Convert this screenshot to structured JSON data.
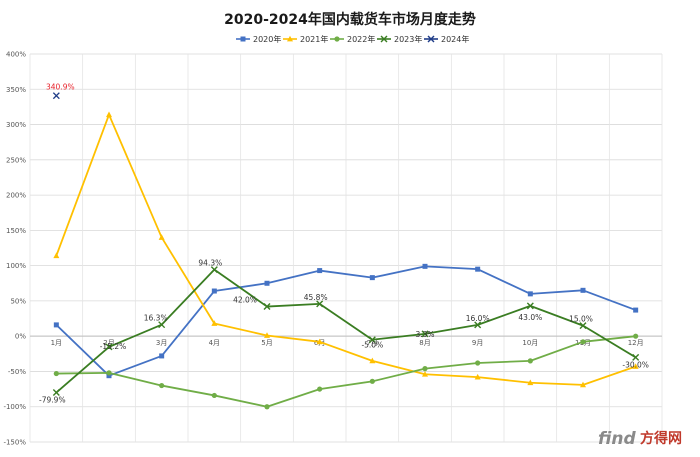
{
  "chart_data": {
    "type": "line",
    "title": "2020-2024年国内载货车市场月度走势",
    "categories": [
      "1月",
      "2月",
      "3月",
      "4月",
      "5月",
      "6月",
      "7月",
      "8月",
      "9月",
      "10月",
      "11月",
      "12月"
    ],
    "ylim": [
      -150,
      400
    ],
    "y_ticks": [
      400,
      350,
      300,
      250,
      200,
      150,
      100,
      50,
      0,
      -50,
      -100,
      -150
    ],
    "y_tick_labels": [
      "400%",
      "350%",
      "300%",
      "250%",
      "200%",
      "150%",
      "100%",
      "50%",
      "0%",
      "-50%",
      "-100%",
      "-150%"
    ],
    "grid": true,
    "legend_position": "top",
    "series": [
      {
        "name": "2020年",
        "color": "#4472c4",
        "marker": "square",
        "values": [
          16,
          -56,
          -28,
          64,
          75,
          93,
          83,
          99,
          95,
          60,
          65,
          37
        ]
      },
      {
        "name": "2021年",
        "color": "#ffc000",
        "marker": "triangle",
        "values": [
          114,
          314,
          140,
          18,
          1,
          -8,
          -35,
          -54,
          -58,
          -66,
          -69,
          -43
        ]
      },
      {
        "name": "2022年",
        "color": "#70ad47",
        "marker": "circle",
        "values": [
          -53,
          -52,
          -70,
          -84,
          -100,
          -75,
          -64,
          -46,
          -38,
          -35,
          -8,
          0
        ]
      },
      {
        "name": "2023年",
        "color": "#3a7d22",
        "marker": "x",
        "values": [
          -79.9,
          -15.2,
          16.3,
          94.3,
          42.0,
          45.8,
          -5.0,
          3.3,
          16.0,
          43.0,
          15.0,
          -30.0
        ]
      },
      {
        "name": "2024年",
        "color": "#1f3c88",
        "marker": "x",
        "values": [
          340.9,
          null,
          null,
          null,
          null,
          null,
          null,
          null,
          null,
          null,
          null,
          null
        ]
      }
    ],
    "data_labels": [
      {
        "series": "2024年",
        "index": 0,
        "text": "340.9%",
        "color": "#e8212a"
      },
      {
        "series": "2023年",
        "index": 0,
        "text": "-79.9%",
        "color": "#333333"
      },
      {
        "series": "2023年",
        "index": 1,
        "text": "-15.2%",
        "color": "#333333"
      },
      {
        "series": "2023年",
        "index": 2,
        "text": "16.3%",
        "color": "#333333"
      },
      {
        "series": "2023年",
        "index": 3,
        "text": "94.3%",
        "color": "#333333"
      },
      {
        "series": "2023年",
        "index": 4,
        "text": "42.0%",
        "color": "#333333"
      },
      {
        "series": "2023年",
        "index": 5,
        "text": "45.8%",
        "color": "#333333"
      },
      {
        "series": "2023年",
        "index": 6,
        "text": "-5.0%",
        "color": "#333333"
      },
      {
        "series": "2023年",
        "index": 7,
        "text": "3.3%",
        "color": "#333333"
      },
      {
        "series": "2023年",
        "index": 8,
        "text": "16.0%",
        "color": "#333333"
      },
      {
        "series": "2023年",
        "index": 9,
        "text": "43.0%",
        "color": "#333333"
      },
      {
        "series": "2023年",
        "index": 10,
        "text": "15.0%",
        "color": "#333333"
      },
      {
        "series": "2023年",
        "index": 11,
        "text": "-30.0%",
        "color": "#333333"
      }
    ]
  },
  "watermark": {
    "brand": "find",
    "cn": "方得网"
  }
}
